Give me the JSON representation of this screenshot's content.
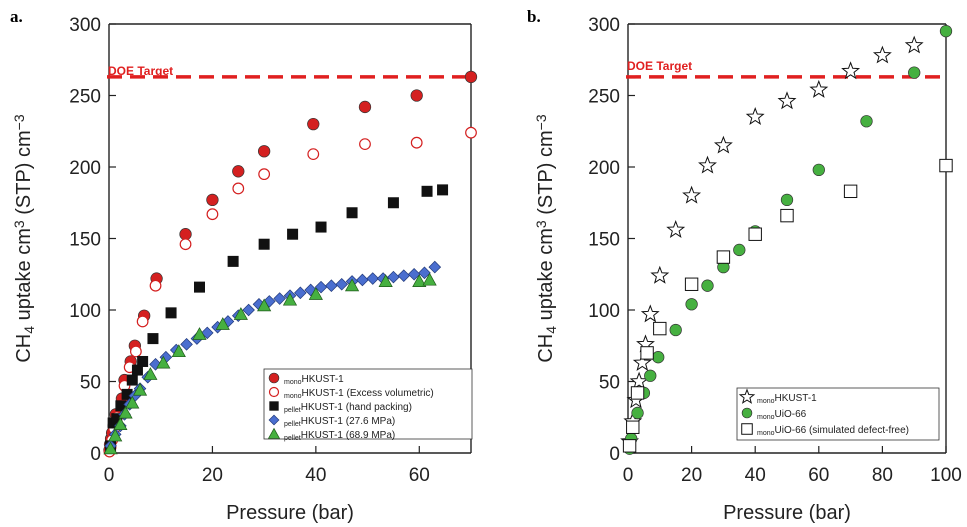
{
  "figure": {
    "panels": [
      {
        "letter": "a.",
        "doe_label": "DOE Target"
      },
      {
        "letter": "b.",
        "doe_label": "DOE Target"
      }
    ]
  },
  "colors": {
    "red": "#d42020",
    "black": "#111111",
    "blue": "#4a6ecf",
    "green": "#46b040",
    "doe": "#e02020"
  },
  "chart_data": [
    {
      "type": "scatter",
      "panel": "a.",
      "xlabel": "Pressure (bar)",
      "ylabel": "CH4 uptake cm3 (STP) cm-3",
      "xlim": [
        0,
        70
      ],
      "ylim": [
        0,
        300
      ],
      "xticks": [
        0,
        20,
        40,
        60
      ],
      "yticks": [
        0,
        50,
        100,
        150,
        200,
        250,
        300
      ],
      "grid": false,
      "legend_position": "bottom-right",
      "reference_line": {
        "label": "DOE Target",
        "value": 263,
        "color": "#e02020",
        "style": "dashed"
      },
      "series": [
        {
          "name": "monoHKUST-1",
          "sub": "mono",
          "base": "HKUST-1",
          "marker": "circle-filled",
          "color": "#d42020",
          "points": [
            [
              0.1,
              2
            ],
            [
              0.2,
              6
            ],
            [
              0.4,
              10
            ],
            [
              0.6,
              14
            ],
            [
              0.9,
              19
            ],
            [
              1.3,
              27
            ],
            [
              2.5,
              38
            ],
            [
              3.0,
              51
            ],
            [
              4.2,
              64
            ],
            [
              5.0,
              75
            ],
            [
              6.8,
              96
            ],
            [
              9.2,
              122
            ],
            [
              14.8,
              153
            ],
            [
              20.0,
              177
            ],
            [
              25.0,
              197
            ],
            [
              30.0,
              211
            ],
            [
              39.5,
              230
            ],
            [
              49.5,
              242
            ],
            [
              59.5,
              250
            ],
            [
              70.0,
              263
            ]
          ]
        },
        {
          "name": "monoHKUST-1 (Excess volumetric)",
          "sub": "mono",
          "base": "HKUST-1 (Excess volumetric)",
          "marker": "circle-open",
          "color": "#d42020",
          "points": [
            [
              0.1,
              1
            ],
            [
              0.3,
              4
            ],
            [
              0.6,
              9
            ],
            [
              1.0,
              17
            ],
            [
              1.5,
              25
            ],
            [
              3.0,
              47
            ],
            [
              4.0,
              60
            ],
            [
              5.2,
              71
            ],
            [
              6.5,
              92
            ],
            [
              9.0,
              117
            ],
            [
              14.8,
              146
            ],
            [
              20.0,
              167
            ],
            [
              25.0,
              185
            ],
            [
              30.0,
              195
            ],
            [
              39.5,
              209
            ],
            [
              49.5,
              216
            ],
            [
              59.5,
              217
            ],
            [
              70.0,
              224
            ]
          ]
        },
        {
          "name": "pelletHKUST-1 (hand packing)",
          "sub": "pellet",
          "base": "HKUST-1 (hand packing)",
          "marker": "square-filled",
          "color": "#111111",
          "points": [
            [
              0.3,
              5
            ],
            [
              0.8,
              21
            ],
            [
              1.5,
              24
            ],
            [
              2.3,
              33
            ],
            [
              3.5,
              41
            ],
            [
              4.5,
              51
            ],
            [
              5.5,
              58
            ],
            [
              6.5,
              64
            ],
            [
              8.5,
              80
            ],
            [
              12.0,
              98
            ],
            [
              17.5,
              116
            ],
            [
              24.0,
              134
            ],
            [
              30.0,
              146
            ],
            [
              35.5,
              153
            ],
            [
              41.0,
              158
            ],
            [
              47.0,
              168
            ],
            [
              55.0,
              175
            ],
            [
              61.5,
              183
            ],
            [
              64.5,
              184
            ]
          ]
        },
        {
          "name": "pelletHKUST-1 (27.6 MPa)",
          "sub": "pellet",
          "base": "HKUST-1 (27.6 MPa)",
          "marker": "diamond",
          "color": "#4a6ecf",
          "points": [
            [
              0.3,
              5
            ],
            [
              1.2,
              13
            ],
            [
              2.2,
              19
            ],
            [
              3.0,
              27
            ],
            [
              4.0,
              34
            ],
            [
              5.0,
              40
            ],
            [
              6.0,
              45
            ],
            [
              7.5,
              53
            ],
            [
              9.0,
              62
            ],
            [
              11.0,
              67
            ],
            [
              13.0,
              72
            ],
            [
              15.0,
              76
            ],
            [
              17.0,
              80
            ],
            [
              19.0,
              84
            ],
            [
              21.0,
              88
            ],
            [
              23.0,
              92
            ],
            [
              25.0,
              96
            ],
            [
              27.0,
              100
            ],
            [
              29.0,
              104
            ],
            [
              31.0,
              106
            ],
            [
              33.0,
              108
            ],
            [
              35.0,
              110
            ],
            [
              37.0,
              112
            ],
            [
              39.0,
              114
            ],
            [
              41.0,
              116
            ],
            [
              43.0,
              117
            ],
            [
              45.0,
              118
            ],
            [
              47.0,
              120
            ],
            [
              49.0,
              121
            ],
            [
              51.0,
              122
            ],
            [
              53.0,
              122
            ],
            [
              55.0,
              123
            ],
            [
              57.0,
              124
            ],
            [
              59.0,
              125
            ],
            [
              61.0,
              126
            ],
            [
              63.0,
              130
            ]
          ]
        },
        {
          "name": "pelletHKUST-1 (68.9 MPa)",
          "sub": "pellet",
          "base": "HKUST-1 (68.9 MPa)",
          "marker": "triangle",
          "color": "#46b040",
          "points": [
            [
              0.3,
              3
            ],
            [
              1.2,
              12
            ],
            [
              2.2,
              20
            ],
            [
              3.2,
              28
            ],
            [
              4.5,
              35
            ],
            [
              6.0,
              44
            ],
            [
              8.0,
              55
            ],
            [
              10.5,
              63
            ],
            [
              13.5,
              71
            ],
            [
              17.5,
              83
            ],
            [
              22.0,
              90
            ],
            [
              25.5,
              97
            ],
            [
              30.0,
              103
            ],
            [
              35.0,
              107
            ],
            [
              40.0,
              111
            ],
            [
              47.0,
              117
            ],
            [
              53.5,
              120
            ],
            [
              60.0,
              120
            ],
            [
              62.0,
              121
            ]
          ]
        }
      ]
    },
    {
      "type": "scatter",
      "panel": "b.",
      "xlabel": "Pressure (bar)",
      "ylabel": "CH4 uptake cm3 (STP) cm-3",
      "xlim": [
        0,
        100
      ],
      "ylim": [
        0,
        300
      ],
      "xticks": [
        0,
        20,
        40,
        60,
        80,
        100
      ],
      "yticks": [
        0,
        50,
        100,
        150,
        200,
        250,
        300
      ],
      "grid": false,
      "legend_position": "bottom-left",
      "reference_line": {
        "label": "DOE Target",
        "value": 263,
        "color": "#e02020",
        "style": "dashed"
      },
      "series": [
        {
          "name": "monoHKUST-1",
          "sub": "mono",
          "base": "HKUST-1",
          "marker": "star-open",
          "color": "#111111",
          "points": [
            [
              0.5,
              8
            ],
            [
              1.5,
              22
            ],
            [
              2.5,
              37
            ],
            [
              3.5,
              50
            ],
            [
              4.5,
              63
            ],
            [
              5.5,
              76
            ],
            [
              7.0,
              97
            ],
            [
              10.0,
              124
            ],
            [
              15.0,
              156
            ],
            [
              20.0,
              180
            ],
            [
              25.0,
              201
            ],
            [
              30.0,
              215
            ],
            [
              40.0,
              235
            ],
            [
              50.0,
              246
            ],
            [
              60.0,
              254
            ],
            [
              70.0,
              267
            ],
            [
              80.0,
              278
            ],
            [
              90.0,
              285
            ]
          ]
        },
        {
          "name": "monoUiO-66",
          "sub": "mono",
          "base": "UiO-66",
          "marker": "circle-filled",
          "color": "#46b040",
          "points": [
            [
              0.5,
              3
            ],
            [
              1.0,
              10
            ],
            [
              3.0,
              28
            ],
            [
              5.0,
              42
            ],
            [
              7.0,
              54
            ],
            [
              9.5,
              67
            ],
            [
              15.0,
              86
            ],
            [
              20.0,
              104
            ],
            [
              25.0,
              117
            ],
            [
              30.0,
              130
            ],
            [
              35.0,
              142
            ],
            [
              40.0,
              155
            ],
            [
              50.0,
              177
            ],
            [
              60.0,
              198
            ],
            [
              75.0,
              232
            ],
            [
              90.0,
              266
            ],
            [
              100.0,
              295
            ]
          ]
        },
        {
          "name": "monoUiO-66 (simulated defect-free)",
          "sub": "mono",
          "base": "UiO-66 (simulated defect-free)",
          "marker": "square-open",
          "color": "#111111",
          "points": [
            [
              0.5,
              5
            ],
            [
              1.5,
              18
            ],
            [
              3.0,
              42
            ],
            [
              6.0,
              70
            ],
            [
              10.0,
              87
            ],
            [
              20.0,
              118
            ],
            [
              30.0,
              137
            ],
            [
              40.0,
              153
            ],
            [
              50.0,
              166
            ],
            [
              70.0,
              183
            ],
            [
              100.0,
              201
            ]
          ]
        }
      ]
    }
  ]
}
